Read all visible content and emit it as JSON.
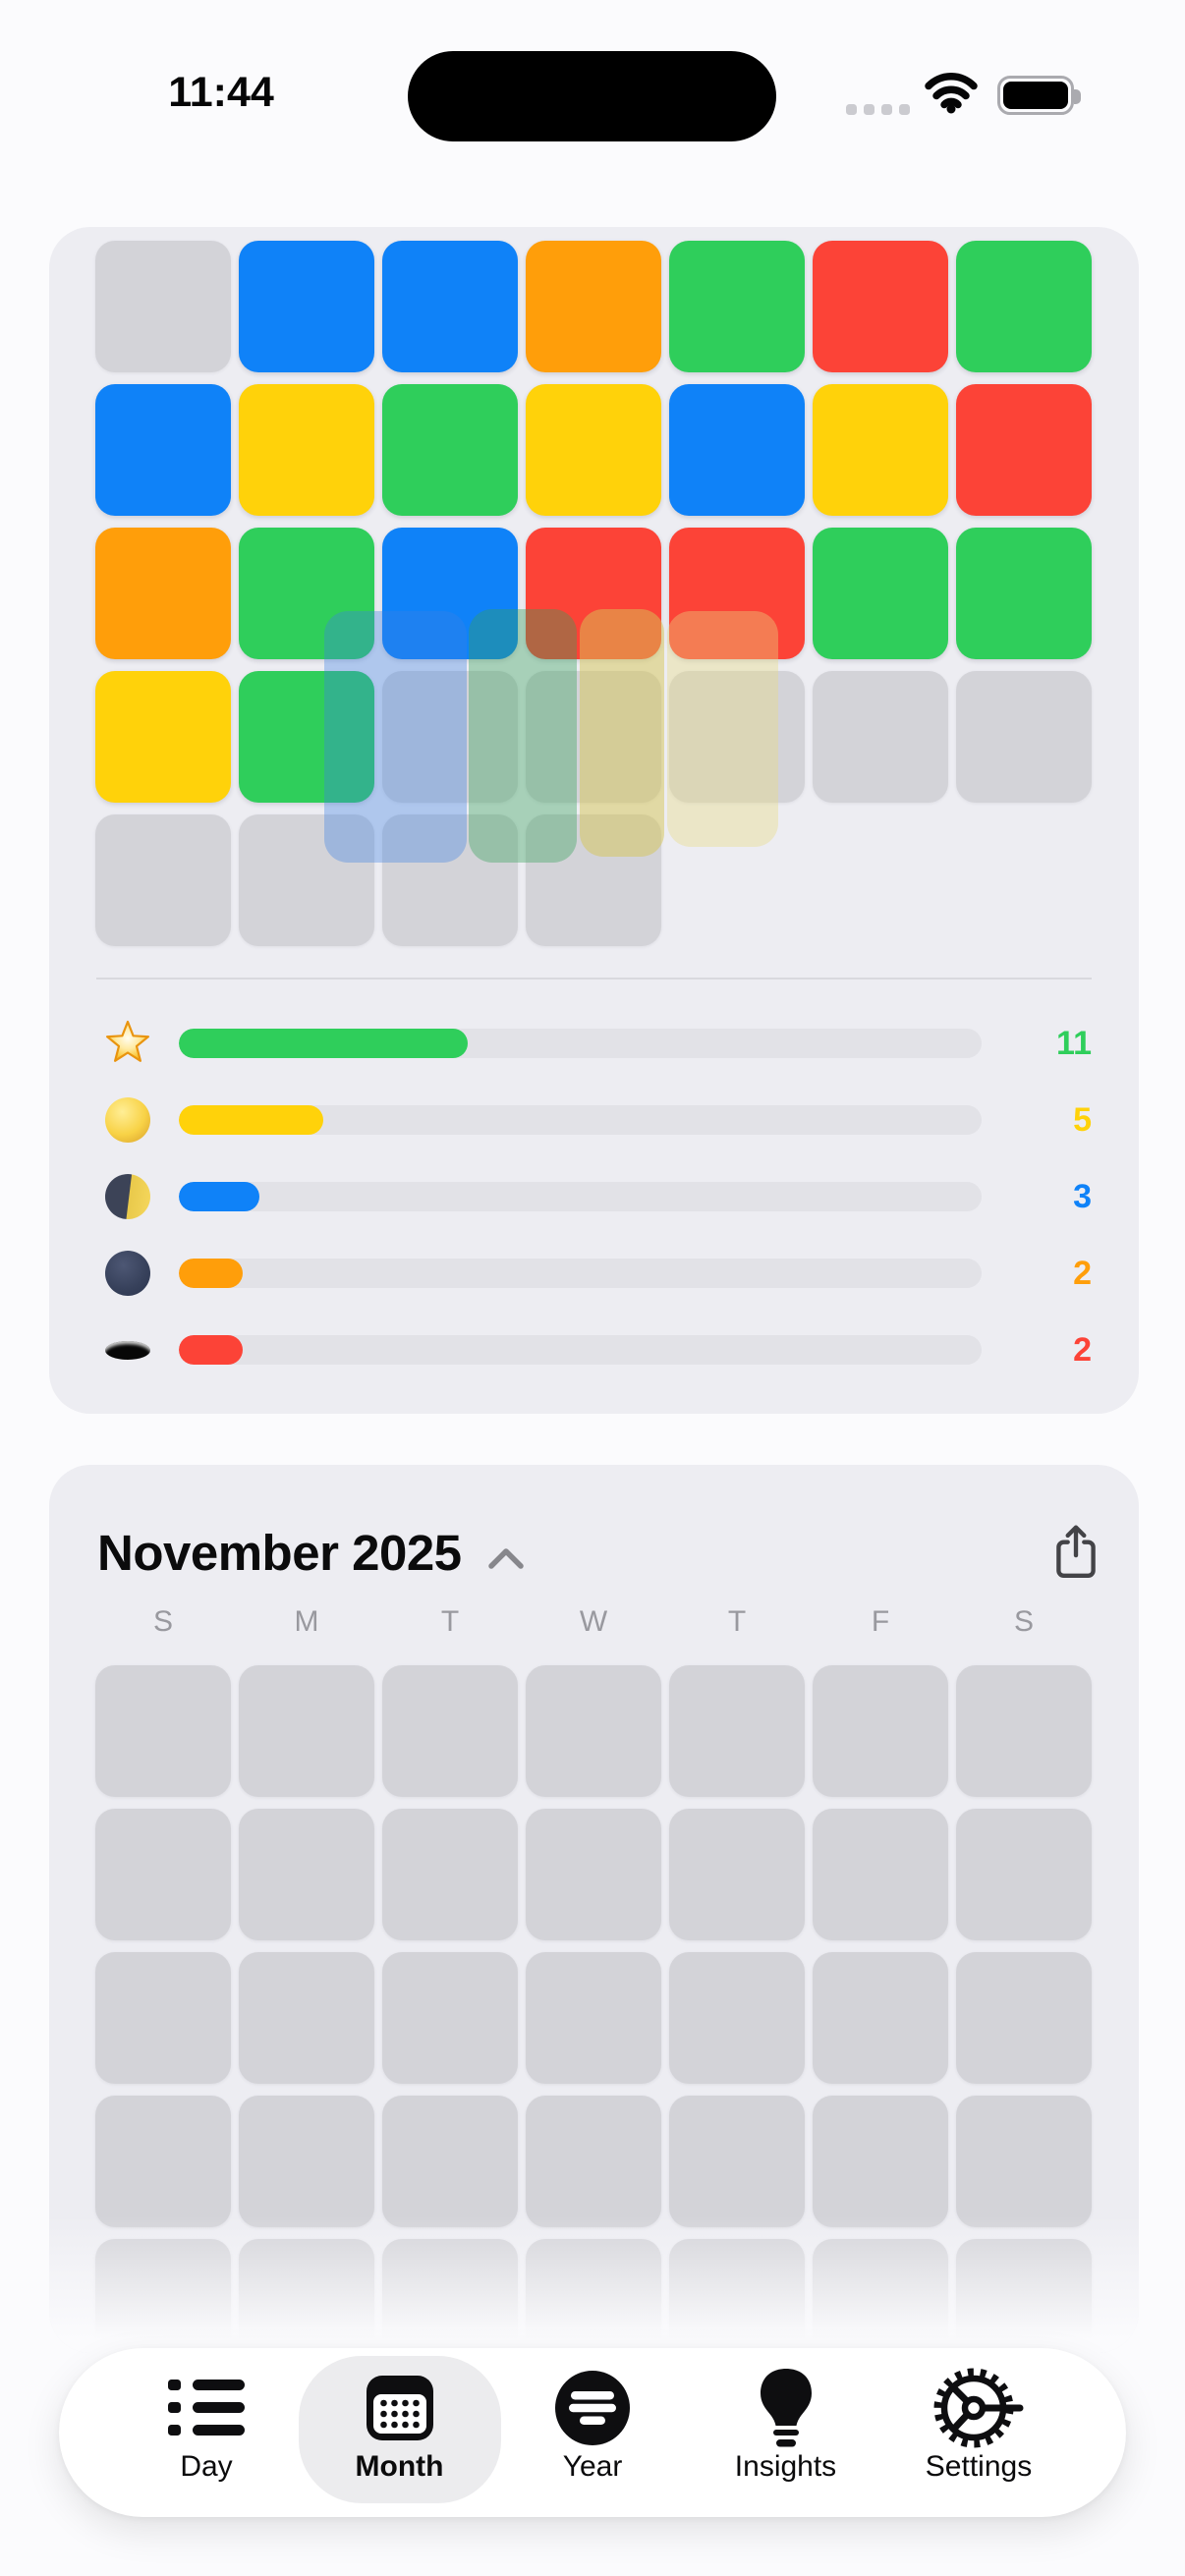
{
  "status": {
    "time": "11:44"
  },
  "colors": {
    "blue": "#0f82f8",
    "green": "#2fce5b",
    "yellow": "#ffd20a",
    "orange": "#ff9e0a",
    "red": "#fc4337",
    "empty": "#d3d3d8"
  },
  "mood_grid": {
    "cells": [
      "empty",
      "blue",
      "blue",
      "orange",
      "green",
      "red",
      "green",
      "blue",
      "yellow",
      "green",
      "yellow",
      "blue",
      "yellow",
      "red",
      "orange",
      "green",
      "blue",
      "red",
      "red",
      "green",
      "green",
      "yellow",
      "green",
      "empty",
      "empty",
      "empty",
      "empty",
      "empty",
      "empty",
      "empty",
      "empty",
      "empty"
    ]
  },
  "ghosts": [
    {
      "tint": "rgba(60,130,230,0.35)"
    },
    {
      "tint": "rgba(52,160,90,0.38)"
    },
    {
      "tint": "rgba(214,198,85,0.50)"
    },
    {
      "tint": "rgba(232,218,130,0.38)"
    }
  ],
  "legend": {
    "rows": [
      {
        "icon": "star",
        "count": "11",
        "percent": 36,
        "color": "green"
      },
      {
        "icon": "full-moon",
        "count": "5",
        "percent": 18,
        "color": "yellow"
      },
      {
        "icon": "half-moon",
        "count": "3",
        "percent": 10,
        "color": "blue"
      },
      {
        "icon": "new-moon",
        "count": "2",
        "percent": 8,
        "color": "orange"
      },
      {
        "icon": "hole",
        "count": "2",
        "percent": 8,
        "color": "red"
      }
    ]
  },
  "november": {
    "title": "November 2025",
    "weekdays": [
      "S",
      "M",
      "T",
      "W",
      "T",
      "F",
      "S"
    ],
    "empty_cell_count": 35
  },
  "tabbar": {
    "tabs": [
      {
        "id": "day",
        "label": "Day",
        "active": false
      },
      {
        "id": "month",
        "label": "Month",
        "active": true
      },
      {
        "id": "year",
        "label": "Year",
        "active": false
      },
      {
        "id": "insights",
        "label": "Insights",
        "active": false
      },
      {
        "id": "settings",
        "label": "Settings",
        "active": false
      }
    ]
  }
}
